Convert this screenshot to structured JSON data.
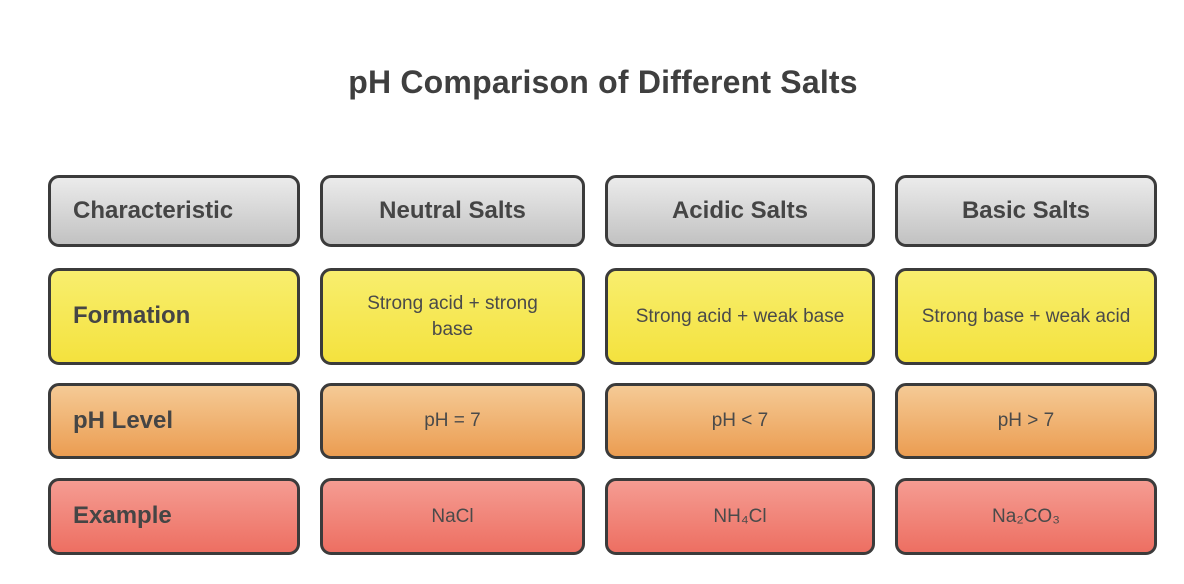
{
  "page": {
    "title": "pH Comparison of Different Salts",
    "background": "#ffffff"
  },
  "grid": {
    "rows": [
      {
        "id": "header",
        "style": {
          "top": "#ebebeb",
          "bottom": "#c2c2c2",
          "border": "#3b3b3b"
        },
        "cells": [
          "Characteristic",
          "Neutral Salts",
          "Acidic Salts",
          "Basic Salts"
        ]
      },
      {
        "id": "formation",
        "style": {
          "top": "#f8ee6e",
          "bottom": "#f4e23e",
          "border": "#3b3b3b"
        },
        "cells": [
          "Formation",
          "Strong acid + strong base",
          "Strong acid + weak base",
          "Strong base + weak acid"
        ]
      },
      {
        "id": "ph-level",
        "style": {
          "top": "#f5ca95",
          "bottom": "#eb9d52",
          "border": "#3b3b3b"
        },
        "cells": [
          "pH Level",
          "pH = 7",
          "pH < 7",
          "pH > 7"
        ]
      },
      {
        "id": "example",
        "style": {
          "top": "#f59c92",
          "bottom": "#ed6f62",
          "border": "#3b3b3b"
        },
        "cells": [
          "Example",
          "NaCl",
          "NH₄Cl",
          "Na₂CO₃"
        ]
      }
    ]
  }
}
